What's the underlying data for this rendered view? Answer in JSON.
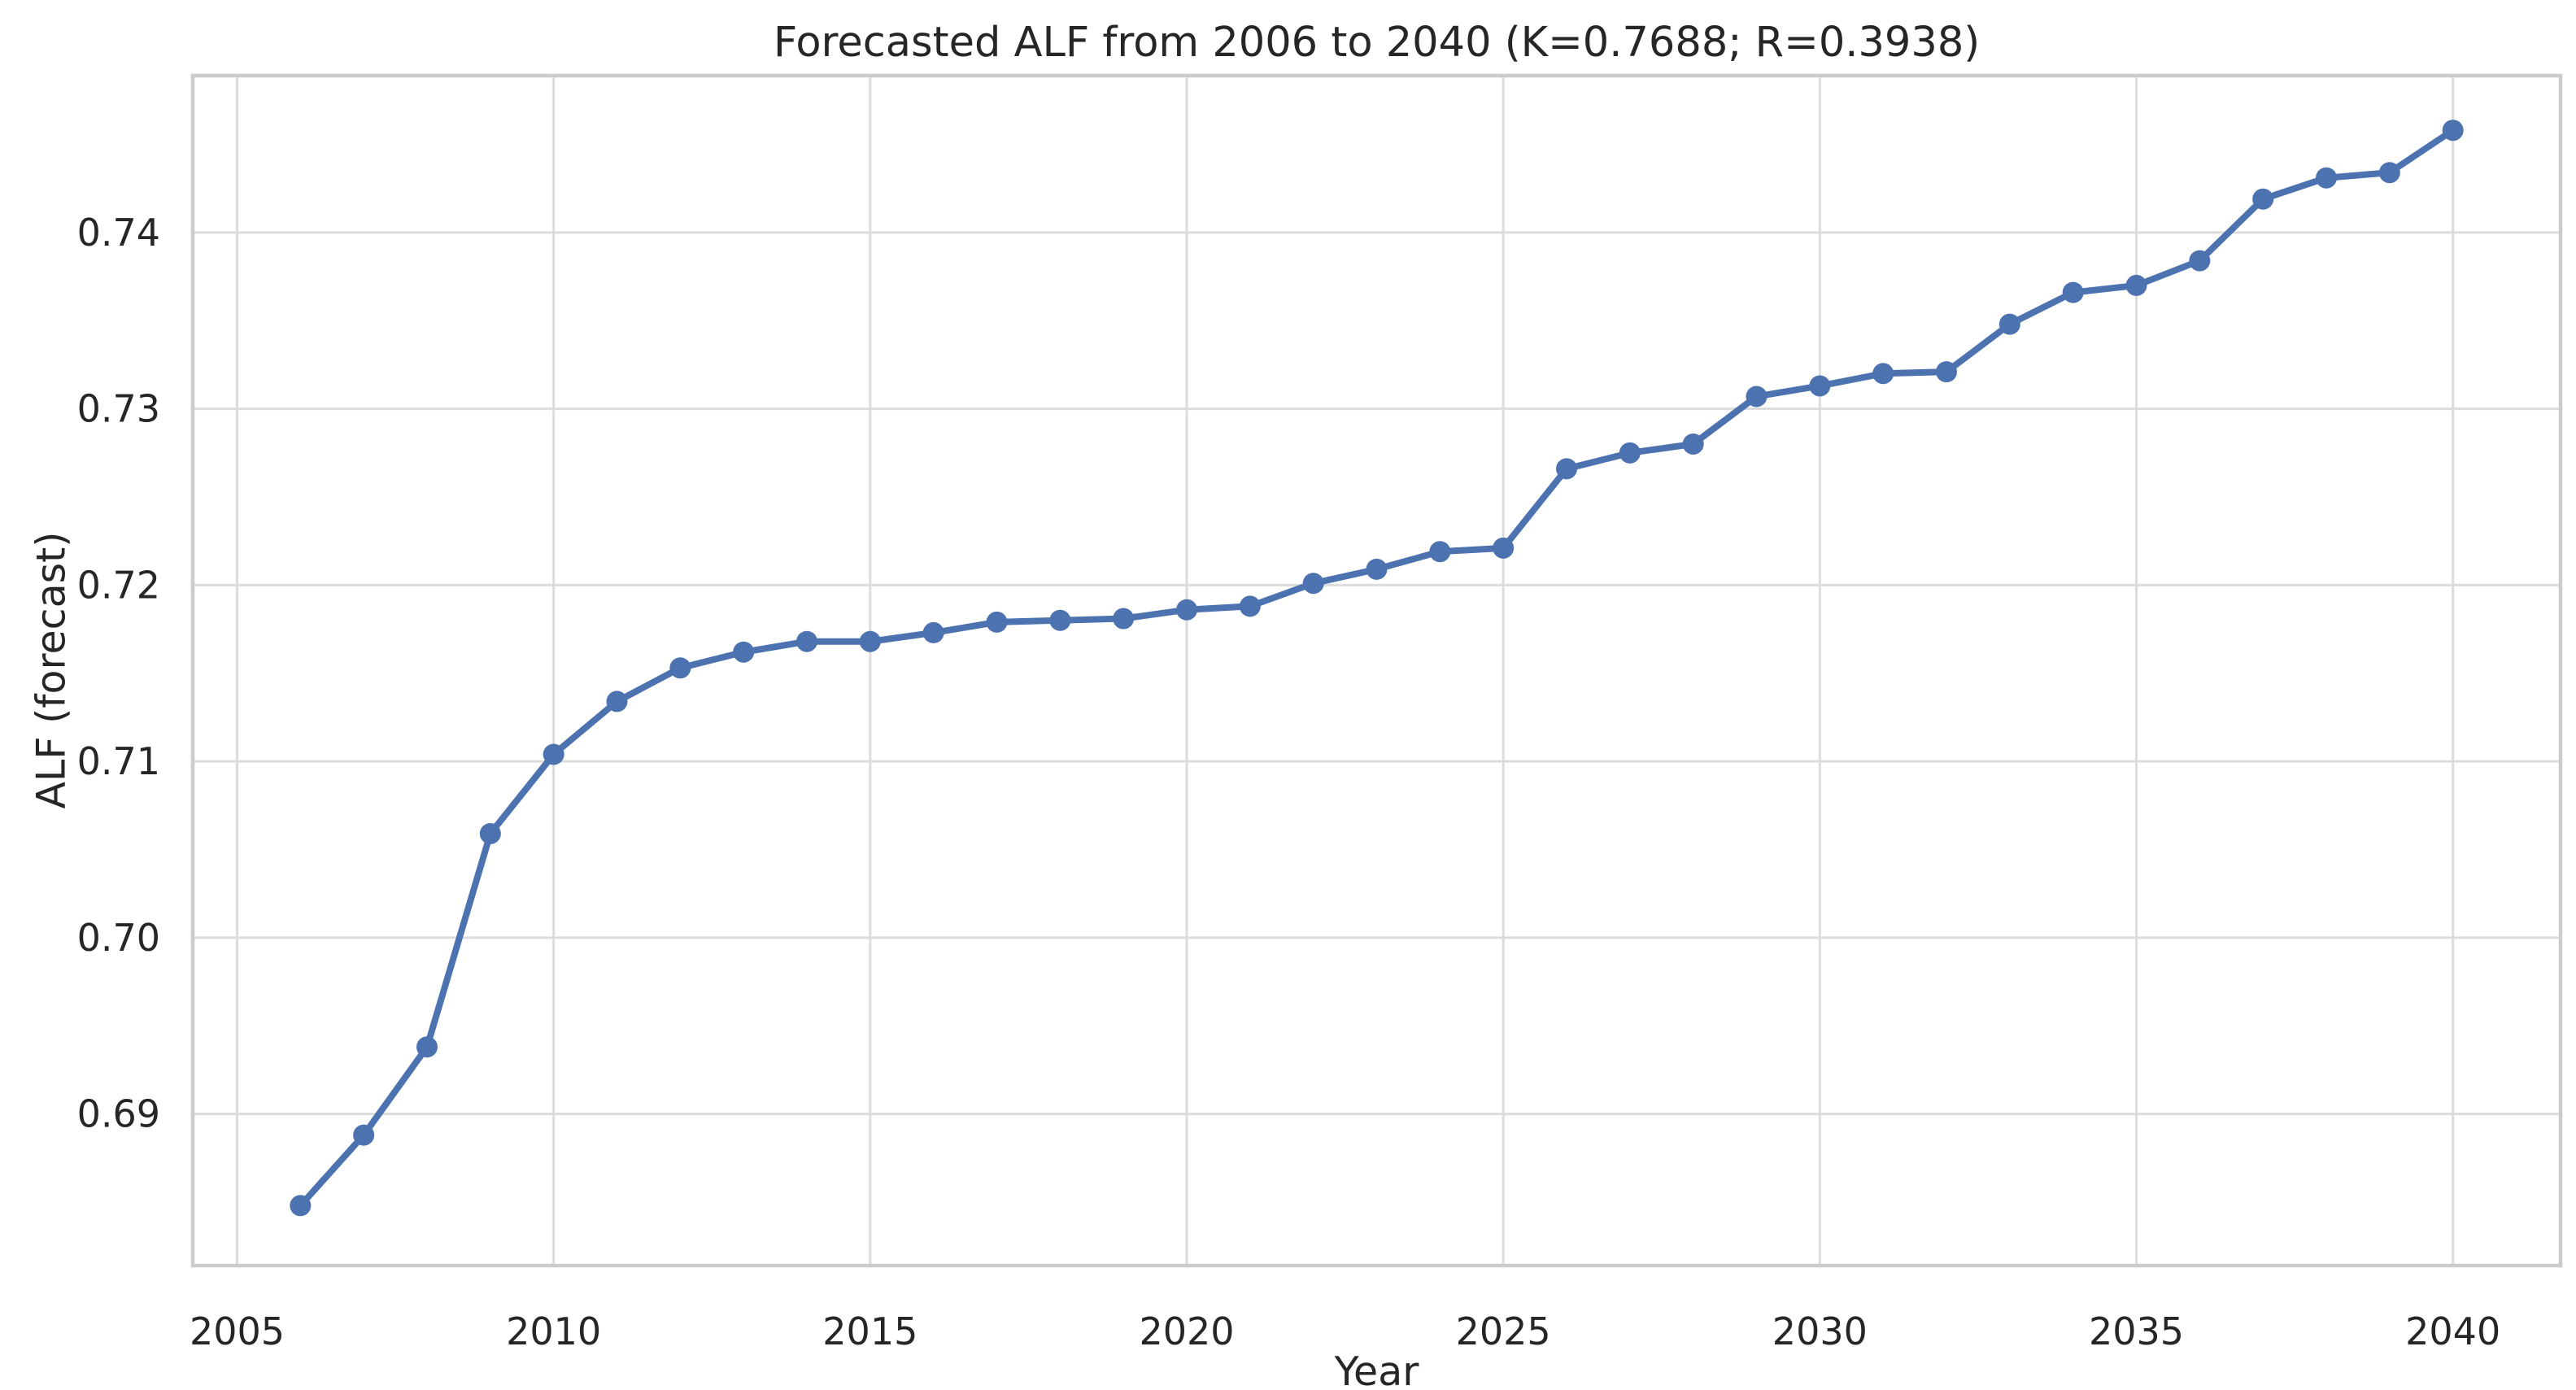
{
  "chart_data": {
    "type": "line",
    "title": "Forecasted ALF from 2006 to 2040 (K=0.7688; R=0.3938)",
    "xlabel": "Year",
    "ylabel": "ALF (forecast)",
    "params": {
      "K": "0.7688",
      "R": "0.3938"
    },
    "x": [
      2006,
      2007,
      2008,
      2009,
      2010,
      2011,
      2012,
      2013,
      2014,
      2015,
      2016,
      2017,
      2018,
      2019,
      2020,
      2021,
      2022,
      2023,
      2024,
      2025,
      2026,
      2027,
      2028,
      2029,
      2030,
      2031,
      2032,
      2033,
      2034,
      2035,
      2036,
      2037,
      2038,
      2039,
      2040
    ],
    "values": [
      0.6848,
      0.6888,
      0.6938,
      0.7059,
      0.7104,
      0.7134,
      0.7153,
      0.7162,
      0.7168,
      0.7168,
      0.7173,
      0.7179,
      0.718,
      0.7181,
      0.7186,
      0.7188,
      0.7201,
      0.7209,
      0.7219,
      0.7221,
      0.7266,
      0.7275,
      0.728,
      0.7307,
      0.7313,
      0.732,
      0.7321,
      0.7348,
      0.7366,
      0.737,
      0.7384,
      0.7419,
      0.7431,
      0.7434,
      0.7458
    ],
    "series_name": "ALF forecast",
    "xlim": [
      2004.3,
      2041.7
    ],
    "ylim": [
      0.6814,
      0.7489
    ],
    "xticks": [
      2005,
      2010,
      2015,
      2020,
      2025,
      2030,
      2035,
      2040
    ],
    "xticklabels": [
      "2005",
      "2010",
      "2015",
      "2020",
      "2025",
      "2030",
      "2035",
      "2040"
    ],
    "yticks": [
      0.69,
      0.7,
      0.71,
      0.72,
      0.73,
      0.74
    ],
    "yticklabels": [
      "0.69",
      "0.70",
      "0.71",
      "0.72",
      "0.73",
      "0.74"
    ],
    "grid": true,
    "legend": "none",
    "line_color": "#4C72B0",
    "marker_color": "#4C72B0",
    "grid_color": "#DCDCDC",
    "spine_color": "#CCCCCC",
    "text_color": "#262626",
    "background_color": "#FFFFFF"
  }
}
